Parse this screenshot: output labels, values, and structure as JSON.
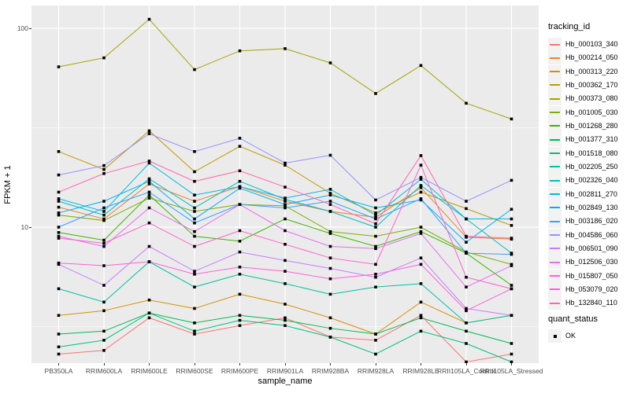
{
  "chart_data": {
    "type": "line",
    "title": "",
    "xlabel": "sample_name",
    "ylabel": "FPKM + 1",
    "y_scale": "log10",
    "ylim": [
      2.0,
      131
    ],
    "y_ticks": [
      100,
      10
    ],
    "y_minor_ticks": [
      31.62,
      3.162
    ],
    "grid": true,
    "legend_position": "right",
    "legend_title": "tracking_id",
    "point_marker": "black-square",
    "panel_bg": "#EBEBEB",
    "grid_color": "#FFFFFF",
    "point_color": "#000000",
    "x_categories": [
      "PB350LA",
      "RRIM600LA",
      "RRIM600LE",
      "RRIM600SE",
      "RRIM600PE",
      "RRIM901LA",
      "RRIM928BA",
      "RRIM928LA",
      "RRIM928LE",
      "RRII105LA_Control",
      "RRII105LA_Stressed"
    ],
    "series": [
      {
        "name": "Hb_000103_340",
        "color": "#F8766D",
        "values": [
          2.3,
          2.4,
          3.5,
          2.9,
          3.2,
          3.5,
          2.8,
          2.7,
          3.6,
          2.1,
          2.3
        ]
      },
      {
        "name": "Hb_000214_050",
        "color": "#EA8331",
        "values": [
          12.6,
          11.0,
          16.5,
          13.5,
          16.0,
          13.5,
          12.0,
          11.2,
          15.8,
          8.9,
          8.7
        ]
      },
      {
        "name": "Hb_000313_220",
        "color": "#D89000",
        "values": [
          3.6,
          3.8,
          4.3,
          3.9,
          4.6,
          4.1,
          3.5,
          2.9,
          4.2,
          3.3,
          3.6
        ]
      },
      {
        "name": "Hb_000362_170",
        "color": "#C09B00",
        "values": [
          24.0,
          19.5,
          30.5,
          19.0,
          25.5,
          20.5,
          14.8,
          11.8,
          15.0,
          12.4,
          10.2
        ]
      },
      {
        "name": "Hb_000373_080",
        "color": "#A3A500",
        "values": [
          64.0,
          71.0,
          111.0,
          62.0,
          77.0,
          79.0,
          67.0,
          47.0,
          65.0,
          42.0,
          35.0
        ]
      },
      {
        "name": "Hb_001005_030",
        "color": "#7CAE00",
        "values": [
          11.5,
          10.8,
          14.0,
          12.0,
          13.0,
          12.8,
          9.5,
          9.0,
          10.0,
          7.5,
          6.5
        ]
      },
      {
        "name": "Hb_001268_280",
        "color": "#39B600",
        "values": [
          9.4,
          8.6,
          14.5,
          9.0,
          8.5,
          11.0,
          9.3,
          8.0,
          9.5,
          7.4,
          5.1
        ]
      },
      {
        "name": "Hb_001377_310",
        "color": "#00BB4E",
        "values": [
          2.9,
          3.0,
          3.7,
          3.3,
          3.6,
          3.4,
          3.1,
          2.9,
          3.5,
          3.0,
          2.6
        ]
      },
      {
        "name": "Hb_001518_080",
        "color": "#00BF7D",
        "values": [
          2.5,
          2.7,
          3.7,
          3.0,
          3.4,
          3.2,
          2.8,
          2.3,
          3.0,
          2.6,
          2.1
        ]
      },
      {
        "name": "Hb_002205_250",
        "color": "#00C1A3",
        "values": [
          4.9,
          4.2,
          6.7,
          5.0,
          5.8,
          5.2,
          4.6,
          5.0,
          5.2,
          3.3,
          3.6
        ]
      },
      {
        "name": "Hb_002326_040",
        "color": "#00BFC4",
        "values": [
          13.5,
          11.5,
          17.5,
          12.5,
          17.0,
          13.8,
          12.0,
          10.0,
          16.2,
          11.0,
          7.4
        ]
      },
      {
        "name": "Hb_002811_270",
        "color": "#00BAE0",
        "values": [
          13.9,
          12.0,
          21.0,
          14.5,
          16.0,
          14.0,
          15.5,
          11.5,
          17.4,
          11.0,
          11.0
        ]
      },
      {
        "name": "Hb_002849_130",
        "color": "#00B0F6",
        "values": [
          11.8,
          13.5,
          17.0,
          11.0,
          15.7,
          13.0,
          14.5,
          12.5,
          13.7,
          8.4,
          12.3
        ]
      },
      {
        "name": "Hb_003186_020",
        "color": "#35A2FF",
        "values": [
          10.0,
          12.5,
          15.0,
          10.5,
          13.0,
          12.5,
          13.5,
          11.0,
          13.9,
          7.4,
          7.3
        ]
      },
      {
        "name": "Hb_004586_060",
        "color": "#9590FF",
        "values": [
          18.3,
          20.4,
          29.5,
          24.0,
          28.0,
          21.0,
          23.0,
          13.7,
          17.8,
          13.5,
          17.2
        ]
      },
      {
        "name": "Hb_006501_090",
        "color": "#C77CFF",
        "values": [
          6.5,
          5.1,
          8.0,
          6.0,
          7.5,
          6.8,
          6.2,
          5.6,
          7.0,
          3.9,
          3.6
        ]
      },
      {
        "name": "Hb_012506_030",
        "color": "#E76BF3",
        "values": [
          9.0,
          8.0,
          12.5,
          9.5,
          13.0,
          9.6,
          8.0,
          7.8,
          9.3,
          5.0,
          6.4
        ]
      },
      {
        "name": "Hb_015807_050",
        "color": "#FA62DB",
        "values": [
          6.6,
          6.4,
          6.7,
          5.8,
          6.3,
          6.0,
          5.5,
          5.8,
          6.5,
          3.8,
          4.9
        ]
      },
      {
        "name": "Hb_053079_020",
        "color": "#FF61CC",
        "values": [
          8.8,
          8.3,
          10.5,
          8.0,
          9.6,
          8.2,
          7.0,
          6.5,
          20.5,
          5.6,
          4.9
        ]
      },
      {
        "name": "Hb_132840_110",
        "color": "#FF65AC",
        "values": [
          15.0,
          18.6,
          21.5,
          17.0,
          19.2,
          15.9,
          13.0,
          10.4,
          22.9,
          9.0,
          8.8
        ]
      }
    ],
    "quant_status": {
      "title": "quant_status",
      "entries": [
        {
          "label": "OK",
          "marker": "square",
          "color": "#000000"
        }
      ]
    }
  }
}
